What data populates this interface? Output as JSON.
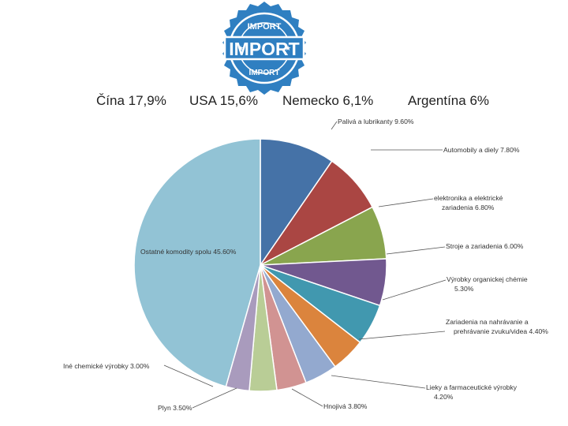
{
  "stamp": {
    "top_text": "IMPORT",
    "main_text": "IMPORT",
    "bottom_text": "IMPORT"
  },
  "countries": [
    {
      "label": "Čína 17,9%"
    },
    {
      "label": "USA 15,6%"
    },
    {
      "label": "Nemecko 6,1%"
    },
    {
      "label": "Argentína 6%"
    }
  ],
  "colors": {
    "stamp_blue": "#2f7fc1"
  },
  "chart_data": {
    "type": "pie",
    "start_angle_deg": 0,
    "direction": "clockwise",
    "slices": [
      {
        "label": "Palivá a lubrikanty 9.60%",
        "value": 9.6,
        "color": "#4572a7"
      },
      {
        "label": "Automobily a diely 7.80%",
        "value": 7.8,
        "color": "#aa4643"
      },
      {
        "label": "elektronika a elektrické zariadenia 6.80%",
        "value": 6.8,
        "color": "#89a54e"
      },
      {
        "label": "Stroje a zariadenia 6.00%",
        "value": 6.0,
        "color": "#71588f"
      },
      {
        "label": "Výrobky organickej chémie 5.30%",
        "value": 5.3,
        "color": "#4198af"
      },
      {
        "label": "Zariadenia na nahrávanie a prehrávanie zvuku/videa 4.40%",
        "value": 4.4,
        "color": "#db843d"
      },
      {
        "label": "Lieky a farmaceutické výrobky 4.20%",
        "value": 4.2,
        "color": "#93a9cf"
      },
      {
        "label": "Hnojivá 3.80%",
        "value": 3.8,
        "color": "#d19392"
      },
      {
        "label": "Plyn 3.50%",
        "value": 3.5,
        "color": "#b9cd96"
      },
      {
        "label": "Iné chemické výrobky 3.00%",
        "value": 3.0,
        "color": "#a99bbd"
      },
      {
        "label": "Ostatné komodity spolu 45.60%",
        "value": 45.6,
        "color": "#92c3d5"
      }
    ]
  }
}
